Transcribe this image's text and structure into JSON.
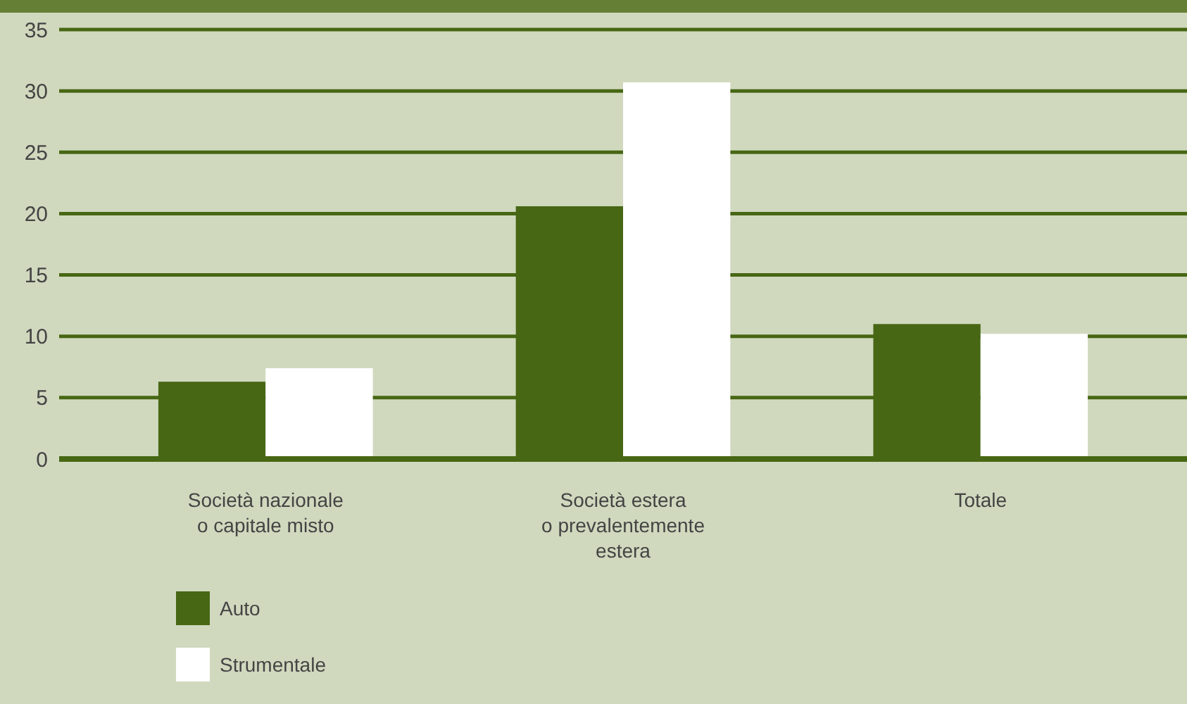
{
  "chart_data": {
    "type": "bar",
    "categories": [
      "Società nazionale\no capitale misto",
      "Società estera\no prevalentemente\nestera",
      "Totale"
    ],
    "series": [
      {
        "name": "Auto",
        "color": "#476714",
        "values": [
          6.3,
          20.6,
          11.0
        ]
      },
      {
        "name": "Strumentale",
        "color": "#ffffff",
        "values": [
          7.4,
          30.7,
          10.2
        ]
      }
    ],
    "ylim": [
      0,
      35
    ],
    "yticks": [
      0,
      5,
      10,
      15,
      20,
      25,
      30,
      35
    ],
    "grid": "y",
    "legend": "bottom left"
  }
}
